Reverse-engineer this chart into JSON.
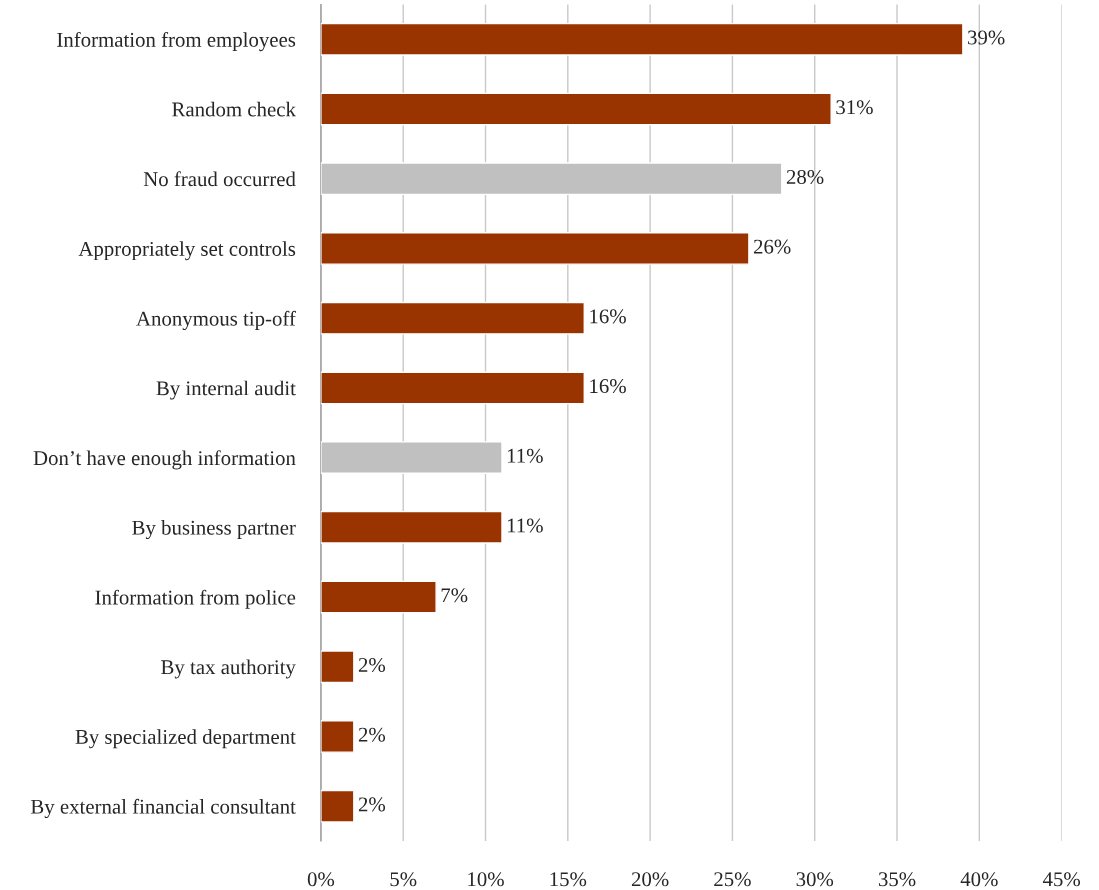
{
  "chart_data": {
    "type": "bar",
    "orientation": "horizontal",
    "categories": [
      "Information from employees",
      "Random check",
      "No fraud occurred",
      "Appropriately set controls",
      "Anonymous tip-off",
      "By internal audit",
      "Don’t have enough information",
      "By business partner",
      "Information from police",
      "By tax authority",
      "By specialized department",
      "By external financial consultant"
    ],
    "values": [
      39,
      31,
      28,
      26,
      16,
      16,
      11,
      11,
      7,
      2,
      2,
      2
    ],
    "colors": [
      "#993300",
      "#993300",
      "#c0c0c0",
      "#993300",
      "#993300",
      "#993300",
      "#c0c0c0",
      "#993300",
      "#993300",
      "#993300",
      "#993300",
      "#993300"
    ],
    "value_labels": [
      "39%",
      "31%",
      "28%",
      "26%",
      "16%",
      "16%",
      "11%",
      "11%",
      "7%",
      "2%",
      "2%",
      "2%"
    ],
    "xlim": [
      0,
      45
    ],
    "xticks": [
      {
        "value": 0,
        "label": "0%"
      },
      {
        "value": 5,
        "label": "5%"
      },
      {
        "value": 10,
        "label": "10%"
      },
      {
        "value": 15,
        "label": "15%"
      },
      {
        "value": 20,
        "label": "20%"
      },
      {
        "value": 25,
        "label": "25%"
      },
      {
        "value": 30,
        "label": "30%"
      },
      {
        "value": 35,
        "label": "35%"
      },
      {
        "value": 40,
        "label": "40%"
      },
      {
        "value": 45,
        "label": "45%"
      }
    ],
    "grid": "x"
  }
}
